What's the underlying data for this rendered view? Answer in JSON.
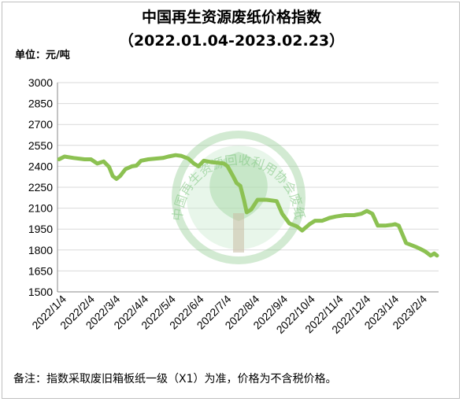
{
  "chart_data": {
    "type": "line",
    "title": "中国再生资源废纸价格指数",
    "subtitle": "（2022.01.04-2023.02.23）",
    "unit_label": "单位：元/吨",
    "xlabel": "",
    "ylabel": "",
    "ylim": [
      1500,
      3000
    ],
    "yticks": [
      "3000",
      "2850",
      "2700",
      "2550",
      "2400",
      "2250",
      "2100",
      "1950",
      "1800",
      "1650",
      "1500"
    ],
    "xticks": [
      "2022/1/4",
      "2022/2/4",
      "2022/3/4",
      "2022/4/4",
      "2022/5/4",
      "2022/6/4",
      "2022/7/4",
      "2022/8/4",
      "2022/9/4",
      "2022/10/4",
      "2022/11/4",
      "2022/12/4",
      "2023/1/4",
      "2023/2/4"
    ],
    "grid": true,
    "line_color": "#8cc152",
    "watermark": "中国再生资源回收利用协会废纸分会",
    "footnote": "备注：指数采取废旧箱板纸一级（X1）为准，价格为不含税价格。",
    "series": [
      {
        "x": [
          "2022-01-04",
          "2022-01-10",
          "2022-01-20",
          "2022-02-01",
          "2022-02-08",
          "2022-02-15",
          "2022-02-22",
          "2022-02-28",
          "2022-03-04",
          "2022-03-08",
          "2022-03-12",
          "2022-03-18",
          "2022-03-25",
          "2022-03-30",
          "2022-04-04",
          "2022-04-12",
          "2022-04-20",
          "2022-04-28",
          "2022-05-04",
          "2022-05-12",
          "2022-05-18",
          "2022-05-26",
          "2022-06-01",
          "2022-06-06",
          "2022-06-12",
          "2022-06-20",
          "2022-06-28",
          "2022-07-04",
          "2022-07-08",
          "2022-07-14",
          "2022-07-18",
          "2022-07-22",
          "2022-07-26",
          "2022-07-29",
          "2022-08-03",
          "2022-08-10",
          "2022-08-20",
          "2022-08-31",
          "2022-09-06",
          "2022-09-14",
          "2022-09-22",
          "2022-09-28",
          "2022-10-06",
          "2022-10-12",
          "2022-10-20",
          "2022-10-28",
          "2022-11-04",
          "2022-11-14",
          "2022-11-24",
          "2022-12-02",
          "2022-12-08",
          "2022-12-14",
          "2022-12-20",
          "2022-12-28",
          "2023-01-04",
          "2023-01-08",
          "2023-01-12",
          "2023-01-20",
          "2023-01-30",
          "2023-02-04",
          "2023-02-10",
          "2023-02-16",
          "2023-02-20",
          "2023-02-23"
        ],
        "y": [
          2450,
          2470,
          2460,
          2450,
          2450,
          2420,
          2435,
          2395,
          2330,
          2310,
          2330,
          2380,
          2400,
          2405,
          2440,
          2450,
          2455,
          2460,
          2470,
          2480,
          2475,
          2455,
          2420,
          2400,
          2440,
          2430,
          2425,
          2420,
          2400,
          2330,
          2280,
          2260,
          2160,
          2070,
          2090,
          2160,
          2160,
          2150,
          2060,
          1990,
          1970,
          1940,
          1985,
          2010,
          2010,
          2030,
          2040,
          2050,
          2050,
          2060,
          2080,
          2060,
          1975,
          1975,
          1980,
          1985,
          1975,
          1850,
          1825,
          1810,
          1790,
          1760,
          1775,
          1760
        ]
      }
    ]
  }
}
